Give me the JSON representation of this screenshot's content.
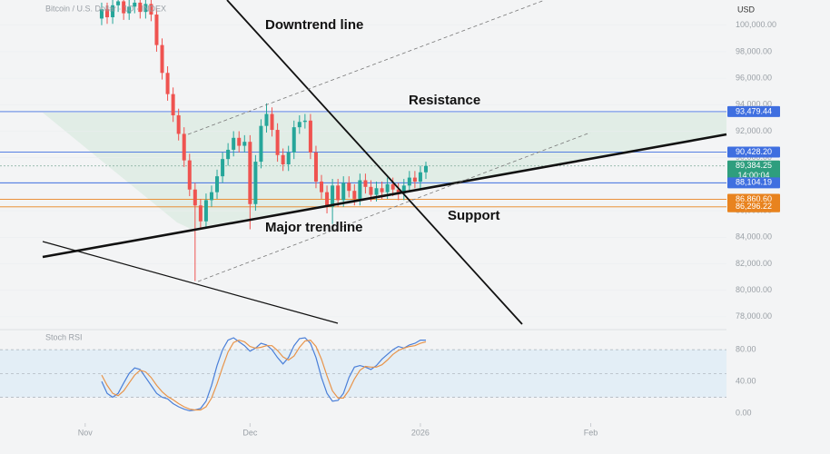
{
  "chart_data": {
    "type": "candlestick",
    "title": "Bitcoin / U.S. Dollar · 1D · INDEX",
    "y_unit": "USD",
    "x": [
      3,
      4,
      5,
      6,
      7,
      8,
      9,
      10,
      11,
      12,
      13,
      14,
      15,
      16,
      17,
      18,
      19,
      20,
      21,
      22,
      23,
      24,
      25,
      26,
      27,
      28,
      29,
      30,
      31,
      32,
      33,
      34,
      35,
      36,
      37,
      38,
      39,
      40,
      41,
      42,
      43,
      44,
      45,
      46,
      47,
      48,
      49,
      50,
      51,
      52,
      53,
      54,
      55,
      56,
      57,
      58,
      59,
      60,
      61,
      62
    ],
    "open": [
      100500,
      101200,
      100600,
      101500,
      101800,
      100900,
      101400,
      101700,
      101000,
      101600,
      100800,
      98500,
      96400,
      94800,
      93200,
      91800,
      89800,
      87600,
      86400,
      85200,
      86800,
      87400,
      88600,
      89900,
      90600,
      91500,
      90900,
      91200,
      86500,
      89700,
      92400,
      93300,
      92100,
      90200,
      89500,
      90400,
      92300,
      92700,
      92800,
      90400,
      88200,
      87400,
      86300,
      87900,
      86800,
      88100,
      87500,
      86900,
      88300,
      87800,
      87200,
      87700,
      87400,
      88000,
      87600,
      87300,
      87900,
      88500,
      88200,
      88900
    ],
    "high": [
      101700,
      101700,
      102000,
      102300,
      102300,
      101900,
      102200,
      102200,
      102100,
      102100,
      101300,
      99000,
      96900,
      95300,
      93700,
      92300,
      90300,
      88100,
      86900,
      87300,
      87900,
      89100,
      90400,
      91100,
      92000,
      92000,
      91700,
      91700,
      90200,
      92900,
      94100,
      93800,
      92600,
      90700,
      90900,
      92800,
      93200,
      93300,
      93300,
      90900,
      88700,
      87900,
      88400,
      88400,
      88600,
      88600,
      88000,
      88800,
      88800,
      88300,
      88200,
      88200,
      88500,
      88500,
      88100,
      88400,
      89000,
      89000,
      89400,
      89700
    ],
    "low": [
      100000,
      100100,
      100100,
      101000,
      100400,
      100400,
      100900,
      100500,
      100500,
      100300,
      98000,
      95900,
      94300,
      92700,
      91300,
      89300,
      87100,
      80700,
      84700,
      84700,
      86300,
      86900,
      88100,
      89400,
      90100,
      90400,
      90400,
      84600,
      86000,
      89200,
      91900,
      91600,
      89700,
      89000,
      89000,
      89900,
      91800,
      92200,
      89900,
      87700,
      86900,
      85800,
      85000,
      86300,
      86300,
      87000,
      86400,
      86400,
      87300,
      86700,
      86700,
      86900,
      86900,
      87100,
      86800,
      86800,
      87400,
      87700,
      87700,
      88400
    ],
    "close": [
      101200,
      100600,
      101500,
      101800,
      100900,
      101400,
      101700,
      101000,
      101600,
      100800,
      98500,
      96400,
      94800,
      93200,
      91800,
      89800,
      87600,
      86400,
      85200,
      86800,
      87400,
      88600,
      89900,
      90600,
      91500,
      90900,
      91200,
      86500,
      89700,
      92400,
      93300,
      92100,
      90200,
      89500,
      90400,
      92300,
      92700,
      92800,
      90400,
      88200,
      87400,
      86300,
      87900,
      86800,
      88100,
      87500,
      86900,
      88300,
      87800,
      87200,
      87700,
      87400,
      88000,
      87600,
      87300,
      87900,
      88500,
      88200,
      88900,
      89384.25
    ],
    "up_color": "#26a69a",
    "down_color": "#ef5350",
    "xlim": [
      -15.5,
      116.7
    ],
    "xticks": [
      {
        "value": 0,
        "label": "Nov"
      },
      {
        "value": 30,
        "label": "Dec"
      },
      {
        "value": 61,
        "label": "2026"
      },
      {
        "value": 92,
        "label": "Feb"
      }
    ],
    "ylim": [
      77100,
      101900
    ],
    "yticks": [
      {
        "value": 78000,
        "label": "78,000.00"
      },
      {
        "value": 80000,
        "label": "80,000.00"
      },
      {
        "value": 82000,
        "label": "82,000.00"
      },
      {
        "value": 84000,
        "label": "84,000.00"
      },
      {
        "value": 86000,
        "label": "86,000.00"
      },
      {
        "value": 88000,
        "label": "88,000.00"
      },
      {
        "value": 90000,
        "label": "90,000.00"
      },
      {
        "value": 92000,
        "label": "92,000.00"
      },
      {
        "value": 94000,
        "label": "94,000.00"
      },
      {
        "value": 96000,
        "label": "96,000.00"
      },
      {
        "value": 98000,
        "label": "98,000.00"
      },
      {
        "value": 100000,
        "label": "100,000.00"
      }
    ],
    "price_labels": [
      {
        "value": 93479.44,
        "label": "93,479.44",
        "color": "#3f6fe0",
        "line": "solid"
      },
      {
        "value": 90428.2,
        "label": "90,428.20",
        "color": "#3f6fe0",
        "line": "solid"
      },
      {
        "value": 89384.25,
        "label": "89,384.25",
        "sublabel": "14:00:04",
        "color": "#2e9e7e",
        "line": "dotted"
      },
      {
        "value": 88104.19,
        "label": "88,104.19",
        "color": "#3f6fe0",
        "line": "solid"
      },
      {
        "value": 86860.6,
        "label": "86,860.60",
        "color": "#e8831f",
        "line": "solid"
      },
      {
        "value": 86296.22,
        "label": "86,296.22",
        "color": "#e8831f",
        "line": "solid"
      }
    ],
    "annotations": [
      "Downtrend line",
      "Resistance",
      "Major trendline",
      "Support"
    ],
    "indicator": {
      "type": "line",
      "title": "Stoch RSI",
      "ylim": [
        -8,
        103
      ],
      "yticks": [
        {
          "value": 0,
          "label": "0.00"
        },
        {
          "value": 40,
          "label": "40.00"
        },
        {
          "value": 80,
          "label": "80.00"
        }
      ],
      "levels": [
        20,
        50,
        80
      ],
      "series": [
        {
          "color": "#4a7fd8",
          "values": [
            40,
            25,
            20,
            25,
            38,
            50,
            57,
            55,
            45,
            35,
            25,
            20,
            18,
            12,
            8,
            5,
            3,
            4,
            6,
            15,
            35,
            60,
            80,
            92,
            95,
            90,
            85,
            78,
            82,
            88,
            86,
            80,
            70,
            62,
            70,
            85,
            94,
            95,
            88,
            70,
            45,
            25,
            15,
            16,
            25,
            45,
            58,
            60,
            58,
            55,
            60,
            68,
            74,
            80,
            84,
            82,
            86,
            88,
            92,
            92
          ]
        },
        {
          "color": "#e8944a",
          "values": [
            48,
            35,
            25,
            22,
            28,
            38,
            48,
            54,
            52,
            45,
            35,
            27,
            21,
            17,
            12,
            8,
            5,
            4,
            4,
            8,
            19,
            37,
            58,
            77,
            89,
            92,
            90,
            84,
            82,
            83,
            85,
            85,
            79,
            71,
            67,
            72,
            83,
            91,
            92,
            84,
            68,
            47,
            28,
            19,
            19,
            29,
            43,
            54,
            59,
            58,
            58,
            61,
            67,
            74,
            79,
            82,
            84,
            85,
            88,
            90
          ]
        }
      ]
    }
  }
}
